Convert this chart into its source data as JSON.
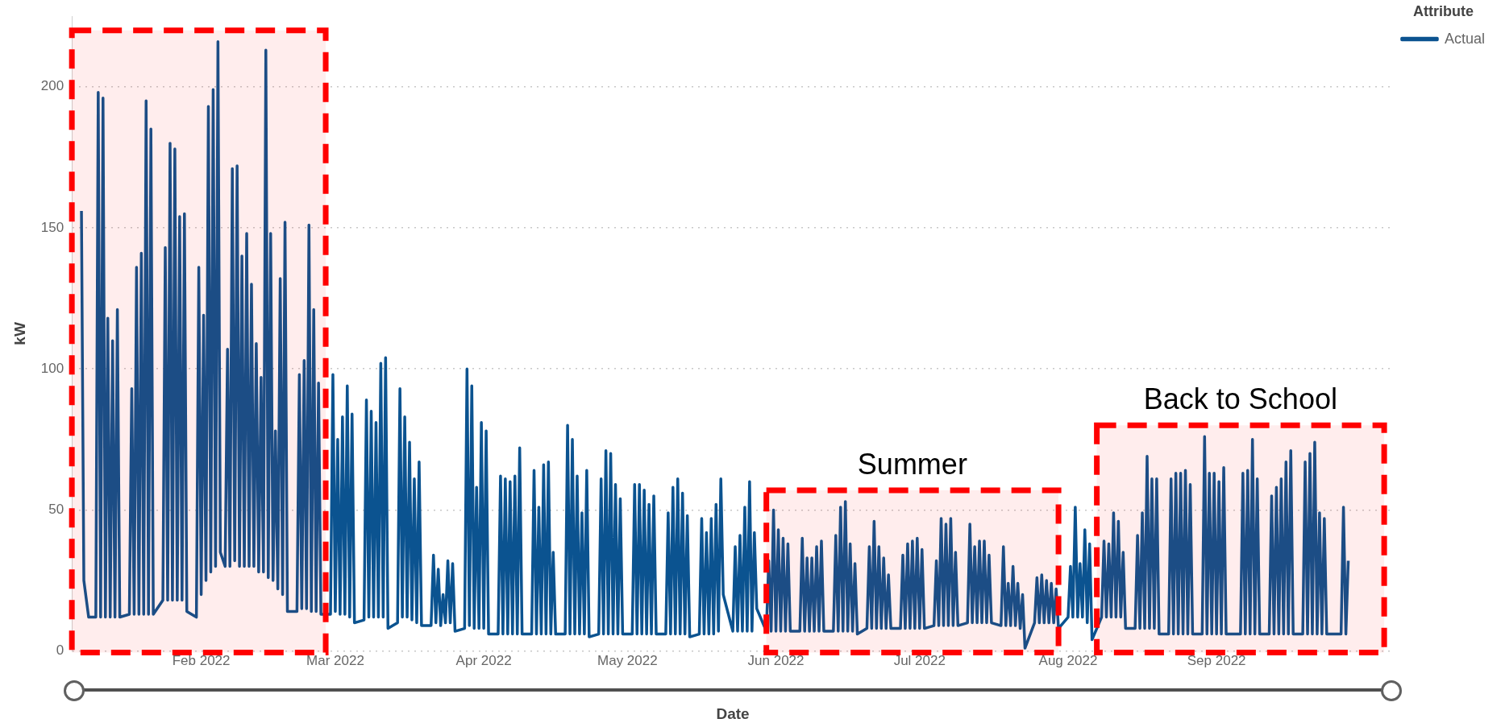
{
  "chart_data": {
    "type": "line",
    "xlabel": "Date",
    "ylabel": "kW",
    "legend_title": "Attribute",
    "legend": "top right",
    "grid": "y",
    "marker": "none",
    "line_style": "solid",
    "xlim": [
      "2022-01-05",
      "2022-10-08"
    ],
    "xticks": [
      {
        "value": "2022-02-01",
        "label": "Feb 2022"
      },
      {
        "value": "2022-03-01",
        "label": "Mar 2022"
      },
      {
        "value": "2022-04-01",
        "label": "Apr 2022"
      },
      {
        "value": "2022-05-01",
        "label": "May 2022"
      },
      {
        "value": "2022-06-01",
        "label": "Jun 2022"
      },
      {
        "value": "2022-07-01",
        "label": "Jul 2022"
      },
      {
        "value": "2022-08-01",
        "label": "Aug 2022"
      },
      {
        "value": "2022-09-01",
        "label": "Sep 2022"
      }
    ],
    "ylim": [
      0,
      225
    ],
    "yticks": [
      0,
      50,
      100,
      150,
      200
    ],
    "bands": [
      {
        "axis": "x",
        "from": "2022-01-05",
        "to": "2022-02-27",
        "color": "#ff0000"
      },
      {
        "axis": "x",
        "from": "2022-05-30",
        "to": "2022-07-30",
        "label": "Summer",
        "color": "#ff0000"
      },
      {
        "axis": "x",
        "from": "2022-08-07",
        "to": "2022-10-06",
        "label": "Back to School",
        "color": "#ff0000"
      }
    ],
    "series": [
      {
        "name": "Actual",
        "color": "#0b5390",
        "x": [
          "2022-01-07T00:00",
          "2022-01-07T12:00",
          "2022-01-08T12:00",
          "2022-01-10T00:00",
          "2022-01-10T12:00",
          "2022-01-11T00:00",
          "2022-01-11T12:00",
          "2022-01-12T00:00",
          "2022-01-12T12:00",
          "2022-01-13T00:00",
          "2022-01-13T12:00",
          "2022-01-14T00:00",
          "2022-01-14T12:00",
          "2022-01-15T00:00",
          "2022-01-17T00:00",
          "2022-01-17T12:00",
          "2022-01-18T00:00",
          "2022-01-18T12:00",
          "2022-01-19T00:00",
          "2022-01-19T12:00",
          "2022-01-20T00:00",
          "2022-01-20T12:00",
          "2022-01-21T00:00",
          "2022-01-21T12:00",
          "2022-01-22T00:00",
          "2022-01-24T00:00",
          "2022-01-24T12:00",
          "2022-01-25T00:00",
          "2022-01-25T12:00",
          "2022-01-26T00:00",
          "2022-01-26T12:00",
          "2022-01-27T00:00",
          "2022-01-27T12:00",
          "2022-01-28T00:00",
          "2022-01-28T12:00",
          "2022-01-29T00:00",
          "2022-01-31T00:00",
          "2022-01-31T12:00",
          "2022-02-01T00:00",
          "2022-02-01T12:00",
          "2022-02-02T00:00",
          "2022-02-02T12:00",
          "2022-02-03T00:00",
          "2022-02-03T12:00",
          "2022-02-04T00:00",
          "2022-02-04T12:00",
          "2022-02-05T00:00",
          "2022-02-06T00:00",
          "2022-02-06T12:00",
          "2022-02-07T00:00",
          "2022-02-07T12:00",
          "2022-02-08T00:00",
          "2022-02-08T12:00",
          "2022-02-09T00:00",
          "2022-02-09T12:00",
          "2022-02-10T00:00",
          "2022-02-10T12:00",
          "2022-02-11T00:00",
          "2022-02-11T12:00",
          "2022-02-12T00:00",
          "2022-02-12T12:00",
          "2022-02-13T00:00",
          "2022-02-13T12:00",
          "2022-02-14T00:00",
          "2022-02-14T12:00",
          "2022-02-15T00:00",
          "2022-02-15T12:00",
          "2022-02-16T00:00",
          "2022-02-16T12:00",
          "2022-02-17T00:00",
          "2022-02-17T12:00",
          "2022-02-18T00:00",
          "2022-02-18T12:00",
          "2022-02-19T00:00",
          "2022-02-21T00:00",
          "2022-02-21T12:00",
          "2022-02-22T00:00",
          "2022-02-22T12:00",
          "2022-02-23T00:00",
          "2022-02-23T12:00",
          "2022-02-24T00:00",
          "2022-02-24T12:00",
          "2022-02-25T00:00",
          "2022-02-25T12:00",
          "2022-02-26T00:00",
          "2022-02-28T00:00",
          "2022-02-28T12:00",
          "2022-03-01T00:00",
          "2022-03-01T12:00",
          "2022-03-02T00:00",
          "2022-03-02T12:00",
          "2022-03-03T00:00",
          "2022-03-03T12:00",
          "2022-03-04T00:00",
          "2022-03-04T12:00",
          "2022-03-05T00:00",
          "2022-03-07T00:00",
          "2022-03-07T12:00",
          "2022-03-08T00:00",
          "2022-03-08T12:00",
          "2022-03-09T00:00",
          "2022-03-09T12:00",
          "2022-03-10T00:00",
          "2022-03-10T12:00",
          "2022-03-11T00:00",
          "2022-03-11T12:00",
          "2022-03-12T00:00",
          "2022-03-14T00:00",
          "2022-03-14T12:00",
          "2022-03-15T00:00",
          "2022-03-15T12:00",
          "2022-03-16T00:00",
          "2022-03-16T12:00",
          "2022-03-17T00:00",
          "2022-03-17T12:00",
          "2022-03-18T00:00",
          "2022-03-18T12:00",
          "2022-03-19T00:00",
          "2022-03-21T00:00",
          "2022-03-21T12:00",
          "2022-03-22T00:00",
          "2022-03-22T12:00",
          "2022-03-23T00:00",
          "2022-03-23T12:00",
          "2022-03-24T00:00",
          "2022-03-24T12:00",
          "2022-03-25T00:00",
          "2022-03-25T12:00",
          "2022-03-26T00:00",
          "2022-03-28T00:00",
          "2022-03-28T12:00",
          "2022-03-29T00:00",
          "2022-03-29T12:00",
          "2022-03-30T00:00",
          "2022-03-30T12:00",
          "2022-03-31T00:00",
          "2022-03-31T12:00",
          "2022-04-01T00:00",
          "2022-04-01T12:00",
          "2022-04-02T00:00",
          "2022-04-04T00:00",
          "2022-04-04T12:00",
          "2022-04-05T00:00",
          "2022-04-05T12:00",
          "2022-04-06T00:00",
          "2022-04-06T12:00",
          "2022-04-07T00:00",
          "2022-04-07T12:00",
          "2022-04-08T00:00",
          "2022-04-08T12:00",
          "2022-04-09T00:00",
          "2022-04-11T00:00",
          "2022-04-11T12:00",
          "2022-04-12T00:00",
          "2022-04-12T12:00",
          "2022-04-13T00:00",
          "2022-04-13T12:00",
          "2022-04-14T00:00",
          "2022-04-14T12:00",
          "2022-04-15T00:00",
          "2022-04-15T12:00",
          "2022-04-16T00:00",
          "2022-04-18T00:00",
          "2022-04-18T12:00",
          "2022-04-19T00:00",
          "2022-04-19T12:00",
          "2022-04-20T00:00",
          "2022-04-20T12:00",
          "2022-04-21T00:00",
          "2022-04-21T12:00",
          "2022-04-22T00:00",
          "2022-04-22T12:00",
          "2022-04-23T00:00",
          "2022-04-25T00:00",
          "2022-04-25T12:00",
          "2022-04-26T00:00",
          "2022-04-26T12:00",
          "2022-04-27T00:00",
          "2022-04-27T12:00",
          "2022-04-28T00:00",
          "2022-04-28T12:00",
          "2022-04-29T00:00",
          "2022-04-29T12:00",
          "2022-04-30T00:00",
          "2022-05-02T00:00",
          "2022-05-02T12:00",
          "2022-05-03T00:00",
          "2022-05-03T12:00",
          "2022-05-04T00:00",
          "2022-05-04T12:00",
          "2022-05-05T00:00",
          "2022-05-05T12:00",
          "2022-05-06T00:00",
          "2022-05-06T12:00",
          "2022-05-07T00:00",
          "2022-05-09T00:00",
          "2022-05-09T12:00",
          "2022-05-10T00:00",
          "2022-05-10T12:00",
          "2022-05-11T00:00",
          "2022-05-11T12:00",
          "2022-05-12T00:00",
          "2022-05-12T12:00",
          "2022-05-13T00:00",
          "2022-05-13T12:00",
          "2022-05-14T00:00",
          "2022-05-16T00:00",
          "2022-05-16T12:00",
          "2022-05-17T00:00",
          "2022-05-17T12:00",
          "2022-05-18T00:00",
          "2022-05-18T12:00",
          "2022-05-19T00:00",
          "2022-05-19T12:00",
          "2022-05-20T00:00",
          "2022-05-20T12:00",
          "2022-05-21T00:00",
          "2022-05-23T00:00",
          "2022-05-23T12:00",
          "2022-05-24T00:00",
          "2022-05-24T12:00",
          "2022-05-25T00:00",
          "2022-05-25T12:00",
          "2022-05-26T00:00",
          "2022-05-26T12:00",
          "2022-05-27T00:00",
          "2022-05-27T12:00",
          "2022-05-28T00:00",
          "2022-05-30T00:00",
          "2022-05-30T12:00",
          "2022-05-31T00:00",
          "2022-05-31T12:00",
          "2022-06-01T00:00",
          "2022-06-01T12:00",
          "2022-06-02T00:00",
          "2022-06-02T12:00",
          "2022-06-03T00:00",
          "2022-06-03T12:00",
          "2022-06-04T00:00",
          "2022-06-06T00:00",
          "2022-06-06T12:00",
          "2022-06-07T00:00",
          "2022-06-07T12:00",
          "2022-06-08T00:00",
          "2022-06-08T12:00",
          "2022-06-09T00:00",
          "2022-06-09T12:00",
          "2022-06-10T00:00",
          "2022-06-10T12:00",
          "2022-06-11T00:00",
          "2022-06-13T00:00",
          "2022-06-13T12:00",
          "2022-06-14T00:00",
          "2022-06-14T12:00",
          "2022-06-15T00:00",
          "2022-06-15T12:00",
          "2022-06-16T00:00",
          "2022-06-16T12:00",
          "2022-06-17T00:00",
          "2022-06-17T12:00",
          "2022-06-18T00:00",
          "2022-06-20T00:00",
          "2022-06-20T12:00",
          "2022-06-21T00:00",
          "2022-06-21T12:00",
          "2022-06-22T00:00",
          "2022-06-22T12:00",
          "2022-06-23T00:00",
          "2022-06-23T12:00",
          "2022-06-24T00:00",
          "2022-06-24T12:00",
          "2022-06-25T00:00",
          "2022-06-27T00:00",
          "2022-06-27T12:00",
          "2022-06-28T00:00",
          "2022-06-28T12:00",
          "2022-06-29T00:00",
          "2022-06-29T12:00",
          "2022-06-30T00:00",
          "2022-06-30T12:00",
          "2022-07-01T00:00",
          "2022-07-01T12:00",
          "2022-07-02T00:00",
          "2022-07-04T00:00",
          "2022-07-04T12:00",
          "2022-07-05T00:00",
          "2022-07-05T12:00",
          "2022-07-06T00:00",
          "2022-07-06T12:00",
          "2022-07-07T00:00",
          "2022-07-07T12:00",
          "2022-07-08T00:00",
          "2022-07-08T12:00",
          "2022-07-09T00:00",
          "2022-07-11T00:00",
          "2022-07-11T12:00",
          "2022-07-12T00:00",
          "2022-07-12T12:00",
          "2022-07-13T00:00",
          "2022-07-13T12:00",
          "2022-07-14T00:00",
          "2022-07-14T12:00",
          "2022-07-15T00:00",
          "2022-07-15T12:00",
          "2022-07-16T00:00",
          "2022-07-18T00:00",
          "2022-07-18T12:00",
          "2022-07-19T00:00",
          "2022-07-19T12:00",
          "2022-07-20T00:00",
          "2022-07-20T12:00",
          "2022-07-21T00:00",
          "2022-07-21T12:00",
          "2022-07-22T00:00",
          "2022-07-22T12:00",
          "2022-07-23T00:00",
          "2022-07-25T00:00",
          "2022-07-25T12:00",
          "2022-07-26T00:00",
          "2022-07-26T12:00",
          "2022-07-27T00:00",
          "2022-07-27T12:00",
          "2022-07-28T00:00",
          "2022-07-28T12:00",
          "2022-07-29T00:00",
          "2022-07-29T12:00",
          "2022-07-30T00:00",
          "2022-08-01T00:00",
          "2022-08-01T12:00",
          "2022-08-02T00:00",
          "2022-08-02T12:00",
          "2022-08-03T00:00",
          "2022-08-03T12:00",
          "2022-08-04T00:00",
          "2022-08-04T12:00",
          "2022-08-05T00:00",
          "2022-08-05T12:00",
          "2022-08-06T00:00",
          "2022-08-08T00:00",
          "2022-08-08T12:00",
          "2022-08-09T00:00",
          "2022-08-09T12:00",
          "2022-08-10T00:00",
          "2022-08-10T12:00",
          "2022-08-11T00:00",
          "2022-08-11T12:00",
          "2022-08-12T00:00",
          "2022-08-12T12:00",
          "2022-08-13T00:00",
          "2022-08-15T00:00",
          "2022-08-15T12:00",
          "2022-08-16T00:00",
          "2022-08-16T12:00",
          "2022-08-17T00:00",
          "2022-08-17T12:00",
          "2022-08-18T00:00",
          "2022-08-18T12:00",
          "2022-08-19T00:00",
          "2022-08-19T12:00",
          "2022-08-20T00:00",
          "2022-08-22T00:00",
          "2022-08-22T12:00",
          "2022-08-23T00:00",
          "2022-08-23T12:00",
          "2022-08-24T00:00",
          "2022-08-24T12:00",
          "2022-08-25T00:00",
          "2022-08-25T12:00",
          "2022-08-26T00:00",
          "2022-08-26T12:00",
          "2022-08-27T00:00",
          "2022-08-29T00:00",
          "2022-08-29T12:00",
          "2022-08-30T00:00",
          "2022-08-30T12:00",
          "2022-08-31T00:00",
          "2022-08-31T12:00",
          "2022-09-01T00:00",
          "2022-09-01T12:00",
          "2022-09-02T00:00",
          "2022-09-02T12:00",
          "2022-09-03T00:00",
          "2022-09-06T00:00",
          "2022-09-06T12:00",
          "2022-09-07T00:00",
          "2022-09-07T12:00",
          "2022-09-08T00:00",
          "2022-09-08T12:00",
          "2022-09-09T00:00",
          "2022-09-09T12:00",
          "2022-09-10T00:00",
          "2022-09-12T00:00",
          "2022-09-12T12:00",
          "2022-09-13T00:00",
          "2022-09-13T12:00",
          "2022-09-14T00:00",
          "2022-09-14T12:00",
          "2022-09-15T00:00",
          "2022-09-15T12:00",
          "2022-09-16T00:00",
          "2022-09-16T12:00",
          "2022-09-17T00:00",
          "2022-09-19T00:00",
          "2022-09-19T12:00",
          "2022-09-20T00:00",
          "2022-09-20T12:00",
          "2022-09-21T00:00",
          "2022-09-21T12:00",
          "2022-09-22T00:00",
          "2022-09-22T12:00",
          "2022-09-23T00:00",
          "2022-09-23T12:00",
          "2022-09-24T00:00",
          "2022-09-27T00:00",
          "2022-09-27T12:00",
          "2022-09-28T00:00",
          "2022-09-28T12:00"
        ],
        "values": [
          156,
          25,
          12,
          12,
          198,
          12,
          196,
          12,
          118,
          12,
          110,
          12,
          121,
          12,
          13,
          93,
          13,
          136,
          13,
          141,
          13,
          195,
          13,
          185,
          13,
          18,
          143,
          18,
          180,
          18,
          178,
          18,
          154,
          18,
          155,
          14,
          12,
          136,
          20,
          119,
          25,
          193,
          28,
          199,
          30,
          216,
          35,
          30,
          107,
          30,
          171,
          32,
          172,
          30,
          140,
          30,
          148,
          30,
          130,
          30,
          109,
          28,
          97,
          28,
          213,
          26,
          148,
          25,
          78,
          22,
          132,
          20,
          152,
          14,
          14,
          98,
          15,
          103,
          15,
          151,
          14,
          121,
          14,
          95,
          13,
          13,
          98,
          14,
          75,
          13,
          83,
          13,
          94,
          12,
          84,
          10,
          11,
          89,
          12,
          85,
          12,
          81,
          12,
          102,
          12,
          104,
          8,
          10,
          93,
          12,
          83,
          12,
          74,
          11,
          61,
          10,
          67,
          9,
          9,
          34,
          10,
          29,
          9,
          20,
          10,
          32,
          10,
          31,
          7,
          8,
          100,
          9,
          94,
          8,
          58,
          8,
          81,
          8,
          78,
          6,
          6,
          62,
          6,
          61,
          6,
          60,
          6,
          62,
          6,
          72,
          6,
          6,
          64,
          6,
          51,
          6,
          66,
          6,
          67,
          6,
          35,
          6,
          6,
          80,
          6,
          75,
          6,
          62,
          6,
          49,
          6,
          64,
          5,
          6,
          61,
          6,
          71,
          6,
          70,
          6,
          59,
          6,
          54,
          6,
          6,
          59,
          6,
          59,
          6,
          57,
          6,
          52,
          6,
          55,
          6,
          6,
          49,
          6,
          58,
          6,
          61,
          6,
          56,
          6,
          48,
          5,
          6,
          47,
          6,
          42,
          6,
          47,
          6,
          52,
          7,
          61,
          20,
          7,
          37,
          7,
          41,
          7,
          51,
          7,
          60,
          7,
          42,
          15,
          7,
          32,
          7,
          50,
          7,
          43,
          7,
          40,
          7,
          38,
          7,
          7,
          40,
          7,
          33,
          7,
          33,
          7,
          37,
          7,
          39,
          7,
          7,
          41,
          7,
          51,
          7,
          53,
          7,
          38,
          7,
          31,
          6,
          8,
          37,
          8,
          46,
          8,
          37,
          8,
          33,
          8,
          27,
          8,
          8,
          34,
          8,
          38,
          8,
          39,
          8,
          40,
          8,
          36,
          8,
          9,
          32,
          9,
          47,
          9,
          45,
          9,
          47,
          9,
          35,
          9,
          10,
          45,
          10,
          37,
          10,
          39,
          10,
          39,
          10,
          34,
          10,
          9,
          37,
          9,
          24,
          9,
          30,
          9,
          24,
          8,
          20,
          1,
          10,
          26,
          10,
          27,
          10,
          25,
          10,
          24,
          10,
          22,
          8,
          12,
          30,
          12,
          51,
          12,
          31,
          12,
          43,
          10,
          38,
          4,
          12,
          39,
          12,
          38,
          12,
          49,
          12,
          46,
          12,
          35,
          8,
          8,
          41,
          8,
          49,
          8,
          69,
          8,
          61,
          8,
          61,
          6,
          6,
          61,
          6,
          63,
          6,
          63,
          6,
          64,
          6,
          59,
          6,
          6,
          76,
          6,
          63,
          6,
          63,
          6,
          60,
          6,
          65,
          6,
          6,
          63,
          6,
          64,
          6,
          75,
          6,
          61,
          6,
          6,
          55,
          6,
          58,
          6,
          61,
          6,
          67,
          6,
          71,
          6,
          6,
          67,
          6,
          70,
          6,
          74,
          6,
          49,
          6,
          47,
          6,
          6,
          51,
          6,
          32
        ]
      }
    ]
  }
}
